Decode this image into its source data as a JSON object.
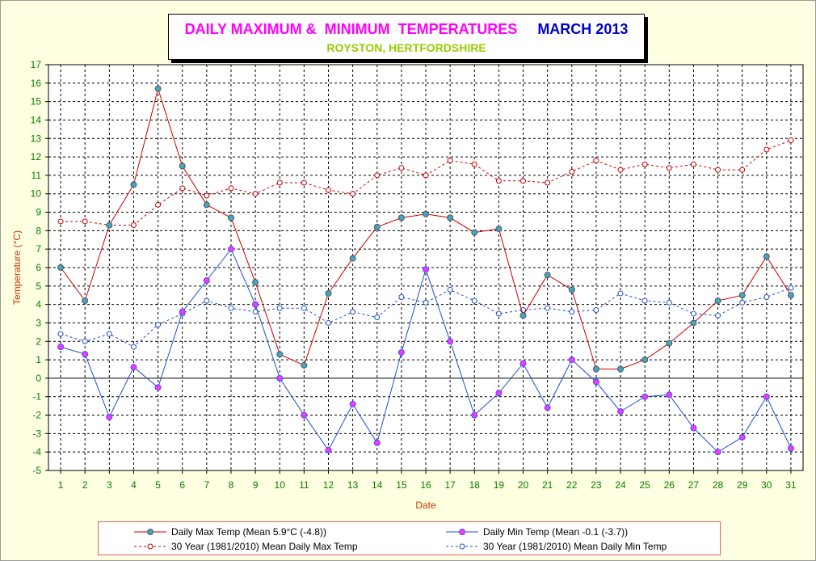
{
  "title": {
    "main": "DAILY MAXIMUM &  MINIMUM  TEMPERATURES",
    "period": "MARCH 2013",
    "subtitle": "ROYSTON, HERTFORDSHIRE"
  },
  "colors": {
    "background": "#ffffe1",
    "max_series": "#cc0000",
    "min_series": "#1f4fd0",
    "max_marker_fill": "#3fa7c8",
    "min_marker_fill": "#ff33ff",
    "axis_label": "#cc3300",
    "tick_label": "#008000"
  },
  "chart_data": {
    "type": "line",
    "xlabel": "Date",
    "ylabel": "Temperature (°C)",
    "ylim": [
      -5,
      17
    ],
    "yticks": [
      -5,
      -4,
      -3,
      -2,
      -1,
      0,
      1,
      2,
      3,
      4,
      5,
      6,
      7,
      8,
      9,
      10,
      11,
      12,
      13,
      14,
      15,
      16,
      17
    ],
    "grid": true,
    "legend_position": "bottom",
    "x": [
      1,
      2,
      3,
      4,
      5,
      6,
      7,
      8,
      9,
      10,
      11,
      12,
      13,
      14,
      15,
      16,
      17,
      18,
      19,
      20,
      21,
      22,
      23,
      24,
      25,
      26,
      27,
      28,
      29,
      30,
      31
    ],
    "series": [
      {
        "name": "Daily Max Temp (Mean 5.9°C (-4.8))",
        "values": [
          6.0,
          4.2,
          8.3,
          10.5,
          15.7,
          11.5,
          9.4,
          8.7,
          5.2,
          1.3,
          0.7,
          4.6,
          6.5,
          8.2,
          8.7,
          8.9,
          8.7,
          7.9,
          8.1,
          3.4,
          5.6,
          4.8,
          0.5,
          0.5,
          1.0,
          1.9,
          3.0,
          4.2,
          4.5,
          6.6,
          4.5
        ]
      },
      {
        "name": "Daily Min Temp (Mean -0.1 (-3.7))",
        "values": [
          1.7,
          1.3,
          -2.1,
          0.6,
          -0.5,
          3.6,
          5.3,
          7.0,
          4.0,
          0.0,
          -2.0,
          -3.9,
          -1.4,
          -3.5,
          1.4,
          5.9,
          2.0,
          -2.0,
          -0.8,
          0.8,
          -1.6,
          1.0,
          -0.2,
          -1.8,
          -1.0,
          -0.9,
          -2.7,
          -4.0,
          -3.2,
          -1.0,
          -3.8
        ]
      },
      {
        "name": "30 Year (1981/2010) Mean Daily Max Temp",
        "values": [
          8.5,
          8.5,
          8.3,
          8.3,
          9.4,
          10.3,
          9.9,
          10.3,
          10.0,
          10.6,
          10.6,
          10.2,
          10.0,
          11.0,
          11.4,
          11.0,
          11.8,
          11.6,
          10.7,
          10.7,
          10.6,
          11.2,
          11.8,
          11.3,
          11.6,
          11.4,
          11.6,
          11.3,
          11.3,
          12.4,
          12.9
        ]
      },
      {
        "name": "30 Year (1981/2010) Mean Daily Min Temp",
        "values": [
          2.4,
          2.0,
          2.4,
          1.7,
          2.9,
          3.5,
          4.2,
          3.8,
          3.6,
          3.8,
          3.8,
          3.0,
          3.6,
          3.3,
          4.4,
          4.1,
          4.8,
          4.2,
          3.5,
          3.7,
          3.8,
          3.6,
          3.7,
          4.6,
          4.2,
          4.1,
          3.5,
          3.4,
          4.1,
          4.4,
          4.9
        ]
      }
    ]
  }
}
